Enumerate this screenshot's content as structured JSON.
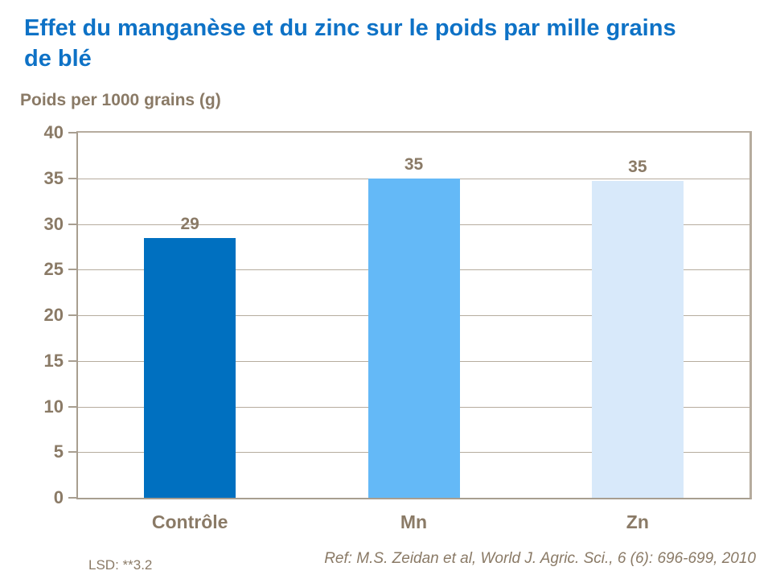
{
  "slide": {
    "title": "Effet du manganèse et du zinc sur le poids par mille grains de blé",
    "footnote_left": "LSD: **3.2",
    "reference": "Ref: M.S. Zeidan et al, World J. Agric. Sci., 6 (6): 696-699, 2010"
  },
  "chart_data": {
    "type": "bar",
    "title": "Poids per 1000 grains (g)",
    "categories": [
      "Contrôle",
      "Mn",
      "Zn"
    ],
    "values": [
      29,
      35,
      35
    ],
    "rendered_bar_values": [
      28.5,
      35.0,
      34.7
    ],
    "bar_colors": [
      "#0070c0",
      "#64b9f7",
      "#d8e9fa"
    ],
    "xlabel": "",
    "ylabel": "Poids per 1000 grains (g)",
    "ylim": [
      0,
      40
    ],
    "yticks": [
      0,
      5,
      10,
      15,
      20,
      25,
      30,
      35,
      40
    ],
    "grid": true,
    "legend": "none"
  },
  "colors": {
    "background": "#ffffff",
    "title_blue": "#0e72c6",
    "axis_text": "#8a7a66",
    "gridline": "#b6ac9e",
    "axis_line": "#a89e90"
  }
}
